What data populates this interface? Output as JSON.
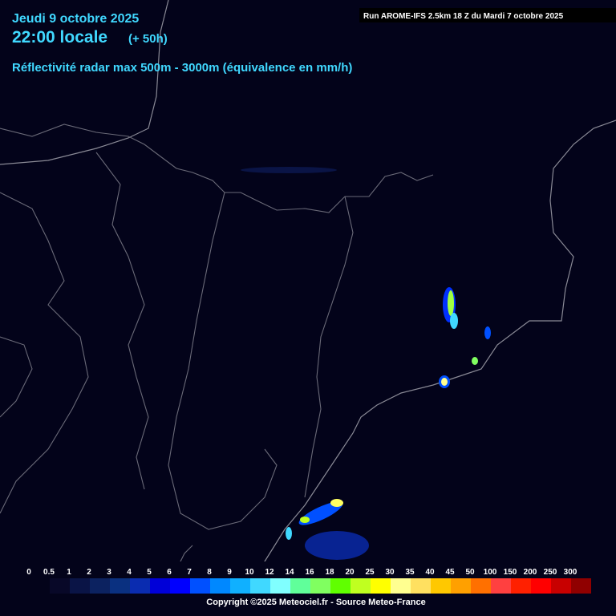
{
  "header": {
    "date": "Jeudi 9 octobre 2025",
    "time": "22:00 locale",
    "offset": "(+ 50h)",
    "subtitle": "Réflectivité radar max 500m - 3000m (équivalence en mm/h)",
    "run": "Run AROME-IFS 2.5km 18 Z du Mardi 7 octobre 2025"
  },
  "legend": {
    "labels": [
      "0",
      "0.5",
      "1",
      "2",
      "3",
      "4",
      "5",
      "6",
      "7",
      "8",
      "9",
      "10",
      "12",
      "14",
      "16",
      "18",
      "20",
      "25",
      "30",
      "35",
      "40",
      "45",
      "50",
      "100",
      "150",
      "200",
      "250",
      "300"
    ],
    "colors": [
      "#080828",
      "#0a1446",
      "#0c2260",
      "#0a3080",
      "#0a2cb0",
      "#0000d8",
      "#0000ff",
      "#0050ff",
      "#0088ff",
      "#10b0ff",
      "#40d8ff",
      "#80ffff",
      "#60ff9a",
      "#80ff60",
      "#60ff00",
      "#c0ff20",
      "#ffff00",
      "#ffff90",
      "#ffe060",
      "#ffc800",
      "#ffa000",
      "#ff7000",
      "#ff4040",
      "#ff2000",
      "#ff0000",
      "#c80000",
      "#900000"
    ]
  },
  "copyright": "Copyright ©2025 Meteociel.fr - Source Meteo-France"
}
